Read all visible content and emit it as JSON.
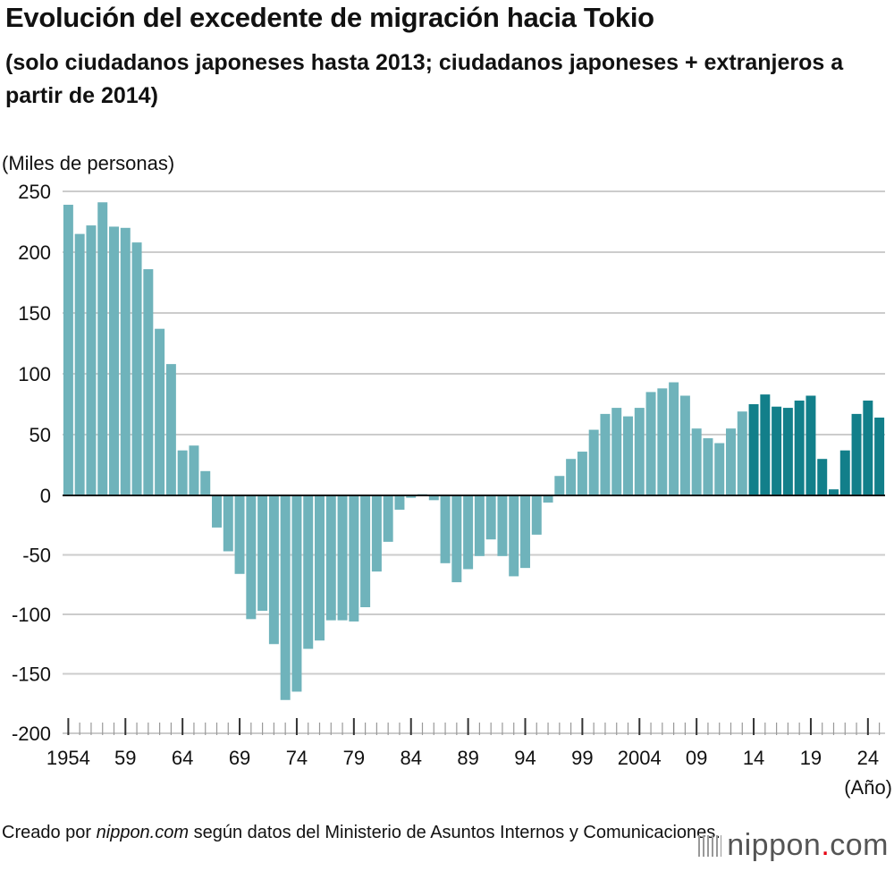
{
  "title": "Evolución del excedente de migración hacia Tokio",
  "subtitle": "(solo ciudadanos japoneses hasta 2013; ciudadanos japoneses + extranjeros a partir de 2014)",
  "source_prefix": "Creado por ",
  "source_site": "nippon.com",
  "source_suffix": " según datos del Ministerio de Asuntos Internos y Comunicaciones.",
  "logo": {
    "main": "nippon",
    "dot": ".",
    "tld": "com"
  },
  "colors": {
    "japanese_only": "#6fb3bb",
    "japanese_and_foreign": "#127f8a",
    "grid": "#cccccc",
    "zero_line": "#111111"
  },
  "chart_data": {
    "type": "bar",
    "ylabel": "(Miles de personas)",
    "xlabel": "(Año)",
    "ylim": [
      -200,
      250
    ],
    "yticks": [
      250,
      200,
      150,
      100,
      50,
      0,
      -50,
      -100,
      -150,
      -200
    ],
    "grid": true,
    "x_tick_labels": [
      {
        "year": 1954,
        "label": "1954"
      },
      {
        "year": 1959,
        "label": "59"
      },
      {
        "year": 1964,
        "label": "64"
      },
      {
        "year": 1969,
        "label": "69"
      },
      {
        "year": 1974,
        "label": "74"
      },
      {
        "year": 1979,
        "label": "79"
      },
      {
        "year": 1984,
        "label": "84"
      },
      {
        "year": 1989,
        "label": "89"
      },
      {
        "year": 1994,
        "label": "94"
      },
      {
        "year": 1999,
        "label": "99"
      },
      {
        "year": 2004,
        "label": "2004"
      },
      {
        "year": 2009,
        "label": "09"
      },
      {
        "year": 2014,
        "label": "14"
      },
      {
        "year": 2019,
        "label": "19"
      },
      {
        "year": 2024,
        "label": "24"
      }
    ],
    "years": [
      1954,
      1955,
      1956,
      1957,
      1958,
      1959,
      1960,
      1961,
      1962,
      1963,
      1964,
      1965,
      1966,
      1967,
      1968,
      1969,
      1970,
      1971,
      1972,
      1973,
      1974,
      1975,
      1976,
      1977,
      1978,
      1979,
      1980,
      1981,
      1982,
      1983,
      1984,
      1985,
      1986,
      1987,
      1988,
      1989,
      1990,
      1991,
      1992,
      1993,
      1994,
      1995,
      1996,
      1997,
      1998,
      1999,
      2000,
      2001,
      2002,
      2003,
      2004,
      2005,
      2006,
      2007,
      2008,
      2009,
      2010,
      2011,
      2012,
      2013,
      2014,
      2015,
      2016,
      2017,
      2018,
      2019,
      2020,
      2021,
      2022,
      2023,
      2024,
      2025
    ],
    "values": [
      239,
      215,
      222,
      241,
      221,
      220,
      208,
      186,
      137,
      108,
      37,
      41,
      20,
      -27,
      -47,
      -66,
      -104,
      -97,
      -125,
      -172,
      -165,
      -129,
      -122,
      -105,
      -105,
      -106,
      -94,
      -64,
      -39,
      -12,
      -2,
      1,
      -4,
      -57,
      -73,
      -62,
      -51,
      -37,
      -51,
      -68,
      -61,
      -33,
      -6,
      16,
      30,
      36,
      54,
      67,
      72,
      65,
      72,
      85,
      88,
      93,
      82,
      55,
      47,
      43,
      55,
      69,
      75,
      83,
      73,
      72,
      78,
      82,
      30,
      5,
      37,
      67,
      78,
      64
    ],
    "series_split_year": 2014
  }
}
